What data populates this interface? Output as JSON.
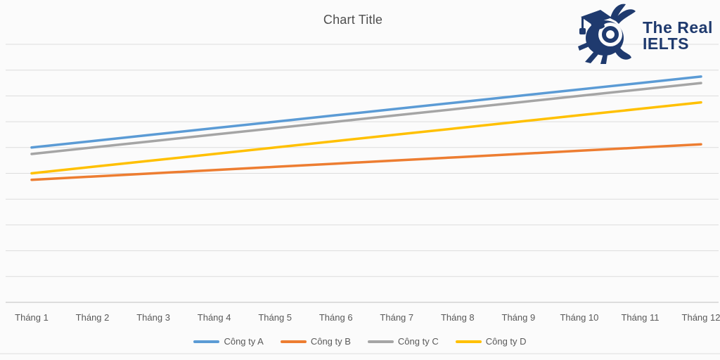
{
  "title": "Chart Title",
  "brand": {
    "line1": "The Real",
    "line2": "IELTS",
    "color": "#1f3a6e",
    "mascot_icon": "snail-graduate-icon"
  },
  "colors": {
    "background": "#fbfbfb",
    "gridline": "#dcdcdc",
    "axis_line": "#bfbfbf",
    "title_text": "#4f4f4f",
    "label_text": "#595959"
  },
  "chart_data": {
    "type": "line",
    "title": "Chart Title",
    "xlabel": "",
    "ylabel": "",
    "categories": [
      "Tháng 1",
      "Tháng 2",
      "Tháng 3",
      "Tháng 4",
      "Tháng 5",
      "Tháng 6",
      "Tháng 7",
      "Tháng 8",
      "Tháng 9",
      "Tháng 10",
      "Tháng 11",
      "Tháng 12"
    ],
    "series": [
      {
        "name": "Công ty A",
        "color": "#5B9BD5",
        "values": [
          6.0,
          6.25,
          6.5,
          6.75,
          7.0,
          7.25,
          7.5,
          7.75,
          8.0,
          8.25,
          8.5,
          8.75
        ]
      },
      {
        "name": "Công ty B",
        "color": "#ED7D31",
        "values": [
          4.75,
          4.875,
          5.0,
          5.125,
          5.25,
          5.375,
          5.5,
          5.625,
          5.75,
          5.875,
          6.0,
          6.125
        ]
      },
      {
        "name": "Công ty C",
        "color": "#A5A5A5",
        "values": [
          5.75,
          6.0,
          6.25,
          6.5,
          6.75,
          7.0,
          7.25,
          7.5,
          7.75,
          8.0,
          8.25,
          8.5
        ]
      },
      {
        "name": "Công ty D",
        "color": "#FFC000",
        "values": [
          5.0,
          5.25,
          5.5,
          5.75,
          6.0,
          6.25,
          6.5,
          6.75,
          7.0,
          7.25,
          7.5,
          7.75
        ]
      }
    ],
    "ylim": [
      0,
      10
    ],
    "y_gridline_step": 1,
    "y_axis_labels_visible": false,
    "grid": "horizontal",
    "legend_position": "bottom"
  }
}
